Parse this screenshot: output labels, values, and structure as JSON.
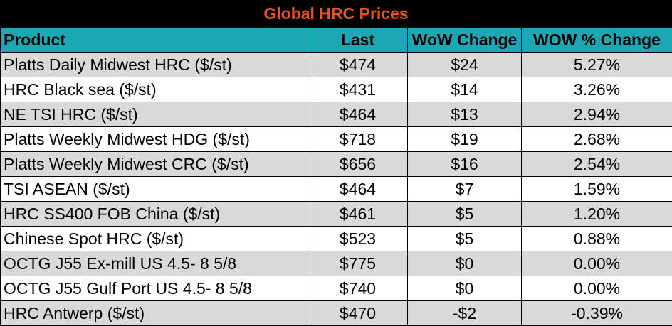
{
  "title": "Global HRC Prices",
  "colors": {
    "title_background": "#000000",
    "title_text": "#e8531e",
    "header_background": "#1aa9b4",
    "row_shade": "#d9d9d9",
    "row_plain": "#ffffff"
  },
  "headers": {
    "product": "Product",
    "last": "Last",
    "wow_change": "WoW Change",
    "wow_pct_change": "WOW % Change"
  },
  "rows": [
    {
      "product": "Platts Daily Midwest HRC ($/st)",
      "last": "$474",
      "wow": "$24",
      "pct": "5.27%"
    },
    {
      "product": "HRC Black sea ($/st)",
      "last": "$431",
      "wow": "$14",
      "pct": "3.26%"
    },
    {
      "product": "NE TSI HRC ($/st)",
      "last": "$464",
      "wow": "$13",
      "pct": "2.94%"
    },
    {
      "product": "Platts Weekly Midwest HDG ($/st)",
      "last": "$718",
      "wow": "$19",
      "pct": "2.68%"
    },
    {
      "product": "Platts Weekly Midwest CRC ($/st)",
      "last": "$656",
      "wow": "$16",
      "pct": "2.54%"
    },
    {
      "product": "TSI ASEAN ($/st)",
      "last": "$464",
      "wow": "$7",
      "pct": "1.59%"
    },
    {
      "product": "HRC SS400 FOB China ($/st)",
      "last": "$461",
      "wow": "$5",
      "pct": "1.20%"
    },
    {
      "product": "Chinese Spot HRC ($/st)",
      "last": "$523",
      "wow": "$5",
      "pct": "0.88%"
    },
    {
      "product": "OCTG J55 Ex-mill US 4.5- 8 5/8",
      "last": "$775",
      "wow": "$0",
      "pct": "0.00%"
    },
    {
      "product": "OCTG J55 Gulf Port US 4.5- 8 5/8",
      "last": "$740",
      "wow": "$0",
      "pct": "0.00%"
    },
    {
      "product": "HRC Antwerp ($/st)",
      "last": "$470",
      "wow": "-$2",
      "pct": "-0.39%"
    }
  ]
}
